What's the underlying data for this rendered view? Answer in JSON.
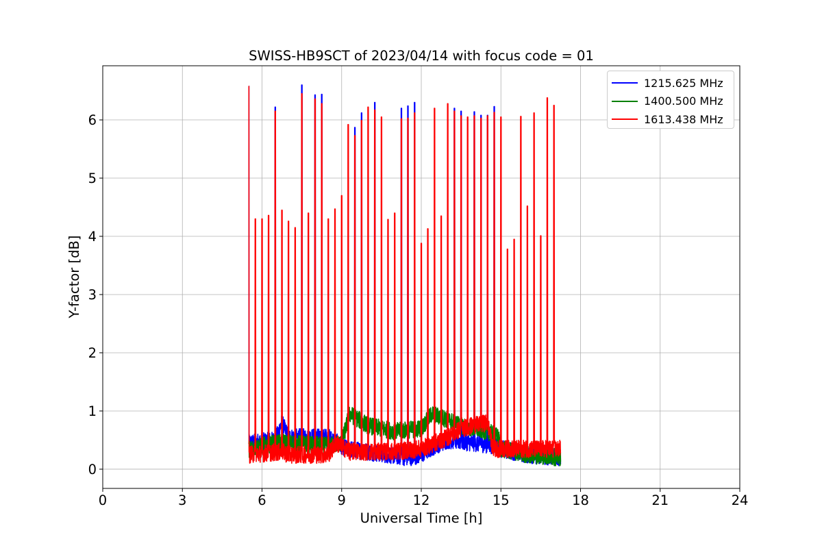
{
  "chart_data": {
    "type": "line",
    "title": "SWISS-HB9SCT of 2023/04/14 with focus code = 01",
    "xlabel": "Universal Time [h]",
    "ylabel": "Y-factor [dB]",
    "xlim": [
      0,
      24
    ],
    "ylim": [
      -0.33,
      6.93
    ],
    "xticks": [
      0,
      3,
      6,
      9,
      12,
      15,
      18,
      21,
      24
    ],
    "yticks": [
      0,
      1,
      2,
      3,
      4,
      5,
      6
    ],
    "grid": true,
    "legend_position": "top-right",
    "series": [
      {
        "name": "1215.625 MHz",
        "color": "#0000ff",
        "x_range": [
          5.5,
          17.25
        ],
        "baseline": [
          [
            5.5,
            0.45
          ],
          [
            6.5,
            0.5
          ],
          [
            6.75,
            0.8
          ],
          [
            7.0,
            0.55
          ],
          [
            8.5,
            0.55
          ],
          [
            9.2,
            0.35
          ],
          [
            10.0,
            0.3
          ],
          [
            11.5,
            0.2
          ],
          [
            12.0,
            0.25
          ],
          [
            12.5,
            0.4
          ],
          [
            13.0,
            0.5
          ],
          [
            14.0,
            0.45
          ],
          [
            14.9,
            0.4
          ],
          [
            15.0,
            0.35
          ],
          [
            16.0,
            0.25
          ],
          [
            17.25,
            0.2
          ]
        ],
        "peaks": [
          [
            5.5,
            6.58
          ],
          [
            6.5,
            6.22
          ],
          [
            7.5,
            6.6
          ],
          [
            8.0,
            6.43
          ],
          [
            8.25,
            6.44
          ],
          [
            9.5,
            5.87
          ],
          [
            9.75,
            6.12
          ],
          [
            10.25,
            6.3
          ],
          [
            11.25,
            6.2
          ],
          [
            11.5,
            6.24
          ],
          [
            11.75,
            6.3
          ],
          [
            13.25,
            6.2
          ],
          [
            13.5,
            6.15
          ],
          [
            14.0,
            6.14
          ],
          [
            14.25,
            6.08
          ],
          [
            14.5,
            6.08
          ],
          [
            14.75,
            6.23
          ]
        ]
      },
      {
        "name": "1400.500 MHz",
        "color": "#008000",
        "x_range": [
          5.5,
          17.25
        ],
        "baseline": [
          [
            5.5,
            0.35
          ],
          [
            6.5,
            0.45
          ],
          [
            7.0,
            0.45
          ],
          [
            8.5,
            0.4
          ],
          [
            9.0,
            0.45
          ],
          [
            9.3,
            0.95
          ],
          [
            10.0,
            0.75
          ],
          [
            11.0,
            0.65
          ],
          [
            12.0,
            0.7
          ],
          [
            12.4,
            0.95
          ],
          [
            13.0,
            0.85
          ],
          [
            13.5,
            0.75
          ],
          [
            14.5,
            0.65
          ],
          [
            14.9,
            0.55
          ],
          [
            15.0,
            0.35
          ],
          [
            16.0,
            0.25
          ],
          [
            17.25,
            0.2
          ]
        ],
        "peaks": []
      },
      {
        "name": "1613.438 MHz",
        "color": "#ff0000",
        "x_range": [
          5.5,
          17.25
        ],
        "baseline": [
          [
            5.5,
            0.25
          ],
          [
            6.75,
            0.3
          ],
          [
            7.0,
            0.25
          ],
          [
            8.5,
            0.25
          ],
          [
            8.8,
            0.45
          ],
          [
            9.3,
            0.3
          ],
          [
            10.0,
            0.3
          ],
          [
            11.0,
            0.3
          ],
          [
            12.0,
            0.35
          ],
          [
            12.5,
            0.45
          ],
          [
            13.0,
            0.55
          ],
          [
            13.5,
            0.7
          ],
          [
            14.5,
            0.8
          ],
          [
            14.7,
            0.35
          ],
          [
            16.0,
            0.35
          ],
          [
            17.25,
            0.35
          ]
        ],
        "peaks": [
          [
            5.5,
            6.58
          ],
          [
            5.75,
            4.3
          ],
          [
            6.0,
            4.3
          ],
          [
            6.25,
            4.36
          ],
          [
            6.5,
            6.15
          ],
          [
            6.75,
            4.45
          ],
          [
            7.0,
            4.26
          ],
          [
            7.25,
            4.15
          ],
          [
            7.5,
            6.45
          ],
          [
            7.75,
            4.4
          ],
          [
            8.0,
            6.36
          ],
          [
            8.25,
            6.28
          ],
          [
            8.5,
            4.3
          ],
          [
            8.75,
            4.47
          ],
          [
            9.0,
            4.7
          ],
          [
            9.25,
            5.92
          ],
          [
            9.5,
            5.73
          ],
          [
            9.75,
            5.99
          ],
          [
            10.0,
            6.22
          ],
          [
            10.25,
            6.17
          ],
          [
            10.5,
            6.05
          ],
          [
            10.75,
            4.29
          ],
          [
            11.0,
            4.4
          ],
          [
            11.25,
            6.02
          ],
          [
            11.5,
            6.03
          ],
          [
            11.75,
            6.12
          ],
          [
            12.0,
            3.88
          ],
          [
            12.25,
            4.13
          ],
          [
            12.5,
            6.2
          ],
          [
            12.75,
            4.35
          ],
          [
            13.0,
            6.28
          ],
          [
            13.25,
            6.15
          ],
          [
            13.5,
            6.07
          ],
          [
            13.75,
            6.05
          ],
          [
            14.0,
            6.07
          ],
          [
            14.25,
            6.03
          ],
          [
            14.5,
            6.07
          ],
          [
            14.75,
            6.13
          ],
          [
            15.0,
            6.05
          ],
          [
            15.25,
            3.78
          ],
          [
            15.5,
            3.95
          ],
          [
            15.75,
            6.06
          ],
          [
            16.0,
            4.52
          ],
          [
            16.25,
            6.12
          ],
          [
            16.5,
            4.01
          ],
          [
            16.75,
            6.38
          ],
          [
            17.0,
            6.25
          ]
        ]
      }
    ]
  }
}
